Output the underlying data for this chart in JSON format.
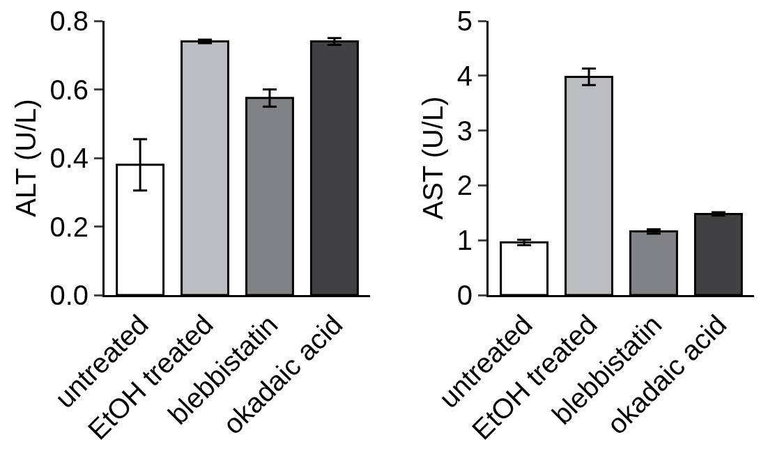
{
  "chart_data": [
    {
      "type": "bar",
      "ylabel": "ALT (U/L)",
      "categories": [
        "untreated",
        "EtOH treated",
        "blebbistatin",
        "okadaic acid"
      ],
      "values": [
        0.38,
        0.74,
        0.575,
        0.74
      ],
      "errors": [
        0.075,
        0.005,
        0.025,
        0.01
      ],
      "colors": [
        "#ffffff",
        "#bcbdc0",
        "#808285",
        "#414042"
      ],
      "ylim": [
        0,
        0.8
      ],
      "yticks": [
        {
          "value": 0,
          "label": "0.0"
        },
        0.2,
        0.4,
        0.6,
        0.8
      ]
    },
    {
      "type": "bar",
      "ylabel": "AST (U/L)",
      "categories": [
        "untreated",
        "EtOH treated",
        "blebbistatin",
        "okadaic acid"
      ],
      "values": [
        0.96,
        3.98,
        1.16,
        1.48
      ],
      "errors": [
        0.05,
        0.15,
        0.04,
        0.03
      ],
      "colors": [
        "#ffffff",
        "#bcbdc0",
        "#808285",
        "#414042"
      ],
      "ylim": [
        0,
        5
      ],
      "yticks": [
        0,
        1,
        2,
        3,
        4,
        5
      ]
    }
  ]
}
